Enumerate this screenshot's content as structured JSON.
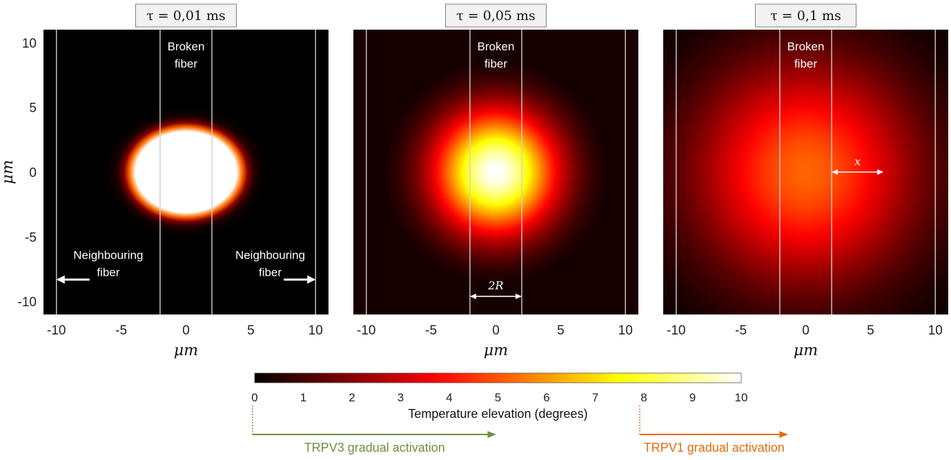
{
  "chart_data": {
    "type": "heatmap",
    "colormap": "hot",
    "colorbar": {
      "label": "Temperature elevation (degrees)",
      "range": [
        0,
        10
      ],
      "ticks": [
        "0",
        "1",
        "2",
        "3",
        "4",
        "5",
        "6",
        "7",
        "8",
        "9",
        "10"
      ]
    },
    "panels": [
      {
        "title": "τ = 0,01 ms",
        "xlabel": "μm",
        "ylabel": "μm",
        "xlim": [
          -11,
          11
        ],
        "ylim": [
          -11,
          11
        ],
        "xticks": [
          "-10",
          "-5",
          "0",
          "5",
          "10"
        ],
        "yticks": [
          "10",
          "5",
          "0",
          "-5",
          "-10"
        ],
        "spot": {
          "center": [
            0,
            0
          ],
          "peak": 10,
          "sigma_x": 4.0,
          "sigma_y": 3.2,
          "sharp": true
        },
        "fiber_lines_x": [
          -10,
          -2,
          2,
          10
        ],
        "labels": [
          {
            "text": [
              "Broken",
              "fiber"
            ],
            "x": 0,
            "y": 9.4
          },
          {
            "text": [
              "Neighbouring",
              "fiber"
            ],
            "x": -6,
            "y": -6.7,
            "arrow": [
              -10,
              -8.3
            ]
          },
          {
            "text": [
              "Neighbouring",
              "fiber"
            ],
            "x": 6.5,
            "y": -6.7,
            "arrow": [
              10,
              -8.3
            ]
          }
        ]
      },
      {
        "title": "τ = 0,05 ms",
        "xlabel": "μm",
        "xlim": [
          -11,
          11
        ],
        "ylim": [
          -11,
          11
        ],
        "xticks": [
          "-10",
          "-5",
          "0",
          "5",
          "10"
        ],
        "spot": {
          "center": [
            0,
            0
          ],
          "peak": 10,
          "sigma_x": 3.3,
          "sigma_y": 3.3,
          "sharp": false
        },
        "fiber_lines_x": [
          -10,
          -2,
          2,
          10
        ],
        "labels": [
          {
            "text": [
              "Broken",
              "fiber"
            ],
            "x": 0,
            "y": 9.4
          }
        ],
        "dimension": {
          "text": "2R",
          "from": -2,
          "to": 2,
          "y": -9.6
        }
      },
      {
        "title": "τ = 0,1 ms",
        "xlabel": "μm",
        "xlim": [
          -11,
          11
        ],
        "ylim": [
          -11,
          11
        ],
        "xticks": [
          "-10",
          "-5",
          "0",
          "5",
          "10"
        ],
        "spot": {
          "center": [
            0,
            0
          ],
          "peak": 5.2,
          "sigma_x": 6.0,
          "sigma_y": 6.0,
          "sharp": false
        },
        "fiber_lines_x": [
          -10,
          -2,
          2,
          10
        ],
        "labels": [
          {
            "text": [
              "Broken",
              "fiber"
            ],
            "x": 0,
            "y": 9.4
          }
        ],
        "dimension": {
          "text": "x",
          "from": 2,
          "to": 6,
          "y": 0
        }
      }
    ],
    "activations": [
      {
        "label": "TRPV3 gradual activation",
        "from": 0,
        "to": 5,
        "color": "#6f8f3a"
      },
      {
        "label": "TRPV1 gradual activation",
        "from": 8,
        "to": 11,
        "color": "#e36c0a"
      }
    ]
  }
}
